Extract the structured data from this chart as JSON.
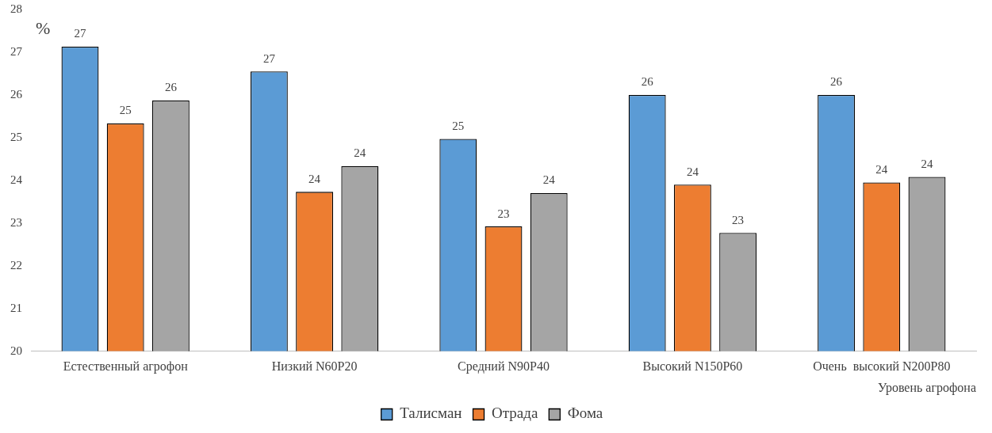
{
  "chart_data": {
    "type": "bar",
    "ylabel": "%",
    "xlabel": "Уровень агрофона",
    "categories": [
      "Естественный агрофон",
      "Низкий N60P20",
      "Средний N90P40",
      "Высокий N150P60",
      "Очень  высокий N200P80"
    ],
    "series": [
      {
        "name": "Талисман",
        "color": "#5b9bd5",
        "values": [
          27.13,
          26.55,
          24.97,
          26.0,
          26.0
        ],
        "value_labels": [
          "27",
          "27",
          "25",
          "26",
          "26"
        ]
      },
      {
        "name": "Отрада",
        "color": "#ed7d31",
        "values": [
          25.33,
          23.73,
          22.92,
          23.9,
          23.95
        ],
        "value_labels": [
          "25",
          "24",
          "23",
          "24",
          "24"
        ]
      },
      {
        "name": "Фома",
        "color": "#a5a5a5",
        "values": [
          25.87,
          24.33,
          23.7,
          22.77,
          24.08
        ],
        "value_labels": [
          "26",
          "24",
          "24",
          "23",
          "24"
        ]
      }
    ],
    "ylim": [
      20,
      28
    ],
    "yticks": [
      20,
      21,
      22,
      23,
      24,
      25,
      26,
      27,
      28
    ],
    "grid": false,
    "legend": "bottom"
  }
}
